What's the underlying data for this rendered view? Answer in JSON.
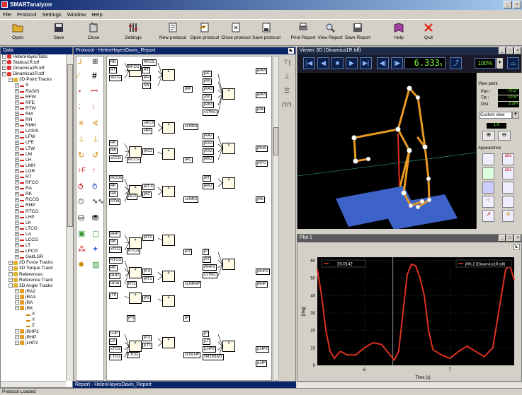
{
  "app_title": "SMARTanalyzer",
  "menu": [
    "File",
    "Protocol",
    "Settings",
    "Window",
    "Help"
  ],
  "toolbar": [
    {
      "label": "Open",
      "icon": "folder-open-icon"
    },
    {
      "label": "Save",
      "icon": "floppy-disk-icon"
    },
    {
      "label": "Close",
      "icon": "close-doc-icon"
    },
    {
      "label": "Settings",
      "icon": "settings-icon"
    },
    {
      "label": "New protocol",
      "icon": "new-protocol-icon"
    },
    {
      "label": "Open protocol",
      "icon": "open-protocol-icon"
    },
    {
      "label": "Close protocol",
      "icon": "close-protocol-icon"
    },
    {
      "label": "Save protocol",
      "icon": "save-protocol-icon"
    },
    {
      "label": "Print Report",
      "icon": "printer-icon"
    },
    {
      "label": "View Report",
      "icon": "view-report-icon"
    },
    {
      "label": "Save Report",
      "icon": "save-report-icon"
    },
    {
      "label": "Help",
      "icon": "help-book-icon"
    },
    {
      "label": "Quit",
      "icon": "quit-x-icon"
    }
  ],
  "data_panel": {
    "title": "Data",
    "tree": [
      {
        "label": "HelenHayesTabs",
        "level": 0,
        "kind": "file"
      },
      {
        "label": "Statica1R.tdf",
        "level": 0,
        "kind": "file"
      },
      {
        "label": "Dinamica2R.tdf",
        "level": 0,
        "kind": "file"
      },
      {
        "label": "Dinamica1R.tdf",
        "level": 0,
        "kind": "file"
      },
      {
        "label": "3D Point Tracks",
        "level": 1,
        "kind": "folder"
      },
      {
        "label": "S",
        "level": 2,
        "kind": "track"
      },
      {
        "label": "RASIS",
        "level": 2,
        "kind": "track"
      },
      {
        "label": "RFW",
        "level": 2,
        "kind": "track"
      },
      {
        "label": "RFE",
        "level": 2,
        "kind": "track"
      },
      {
        "label": "RTW",
        "level": 2,
        "kind": "track"
      },
      {
        "label": "RM",
        "level": 2,
        "kind": "track"
      },
      {
        "label": "RH",
        "level": 2,
        "kind": "track"
      },
      {
        "label": "RMH",
        "level": 2,
        "kind": "track"
      },
      {
        "label": "LASIS",
        "level": 2,
        "kind": "track"
      },
      {
        "label": "LFW",
        "level": 2,
        "kind": "track"
      },
      {
        "label": "LFE",
        "level": 2,
        "kind": "track"
      },
      {
        "label": "LTW",
        "level": 2,
        "kind": "track"
      },
      {
        "label": "LM",
        "level": 2,
        "kind": "track"
      },
      {
        "label": "LH",
        "level": 2,
        "kind": "track"
      },
      {
        "label": "LMH",
        "level": 2,
        "kind": "track"
      },
      {
        "label": "LGR",
        "level": 2,
        "kind": "track"
      },
      {
        "label": "RT",
        "level": 2,
        "kind": "track"
      },
      {
        "label": "RFCG",
        "level": 2,
        "kind": "track"
      },
      {
        "label": "RA",
        "level": 2,
        "kind": "track"
      },
      {
        "label": "RK",
        "level": 2,
        "kind": "track"
      },
      {
        "label": "RCCG",
        "level": 2,
        "kind": "track"
      },
      {
        "label": "RHP",
        "level": 2,
        "kind": "track"
      },
      {
        "label": "RTCG",
        "level": 2,
        "kind": "track"
      },
      {
        "label": "LHP",
        "level": 2,
        "kind": "track"
      },
      {
        "label": "LK",
        "level": 2,
        "kind": "track"
      },
      {
        "label": "LTCG",
        "level": 2,
        "kind": "track"
      },
      {
        "label": "LA",
        "level": 2,
        "kind": "track"
      },
      {
        "label": "LCCG",
        "level": 2,
        "kind": "track"
      },
      {
        "label": "LT",
        "level": 2,
        "kind": "track"
      },
      {
        "label": "LFCG",
        "level": 2,
        "kind": "track"
      },
      {
        "label": "GaitLGR",
        "level": 2,
        "kind": "track"
      },
      {
        "label": "3D Force Tracks",
        "level": 1,
        "kind": "folder"
      },
      {
        "label": "3D Torque Track",
        "level": 1,
        "kind": "folder"
      },
      {
        "label": "References",
        "level": 1,
        "kind": "folder"
      },
      {
        "label": "Reference Track",
        "level": 1,
        "kind": "folder"
      },
      {
        "label": "3D Angle Tracks",
        "level": 1,
        "kind": "folder"
      },
      {
        "label": "jRA2",
        "level": 2,
        "kind": "angle"
      },
      {
        "label": "jRA3",
        "level": 2,
        "kind": "angle"
      },
      {
        "label": "jRA",
        "level": 2,
        "kind": "angle"
      },
      {
        "label": "jRK",
        "level": 2,
        "kind": "angle"
      },
      {
        "label": "X",
        "level": 3,
        "kind": "axis"
      },
      {
        "label": "Y",
        "level": 3,
        "kind": "axis"
      },
      {
        "label": "Z",
        "level": 3,
        "kind": "axis"
      },
      {
        "label": "jRHP2",
        "level": 2,
        "kind": "angle"
      },
      {
        "label": "jRHP",
        "level": 2,
        "kind": "angle"
      },
      {
        "label": "jLHP2",
        "level": 2,
        "kind": "angle"
      }
    ]
  },
  "protocol_panel": {
    "title": "Protocol - HelenHayesDavis_Report",
    "col1_nodes": [
      [
        "RK",
        "RT",
        "sFCG"
      ],
      [
        "RFCG",
        "RT",
        "RH",
        "RA"
      ],
      [
        "sRCX",
        "sRF"
      ],
      [
        "jRC",
        "jRR",
        "jRA3",
        "a90",
        "jRA3",
        "v1TM1"
      ],
      [
        "RK",
        "RA",
        "sCCG"
      ],
      [
        "jRC2"
      ],
      [
        "jRA2",
        "jRX2",
        "jRX2",
        "jRK2"
      ],
      [
        "RCCG",
        "RK",
        "RA",
        "RTW"
      ],
      [
        "jRT.X",
        "jRC"
      ],
      [
        "jRT",
        "jRK2"
      ],
      [
        "RHP",
        "RK",
        "sTCG"
      ],
      [
        "jRT2"
      ],
      [
        "RTCG",
        "RK",
        "RHP",
        "RFW"
      ],
      [
        "jP.X",
        "jRT1"
      ],
      [
        "jP",
        "jRT",
        "jRHP2",
        "v1TM1"
      ],
      [
        "jTP"
      ],
      [
        "jP2"
      ],
      [
        "LHP",
        "LK",
        "sTCG",
        "LTCG"
      ],
      [
        "jP.X",
        "jLT1"
      ],
      [
        "jP",
        "jLT",
        "jLHP2",
        "vM1M1M1"
      ]
    ],
    "outputs": [
      "RFCG",
      "jRF",
      "jRA3",
      "jRA3",
      "jRA",
      "vLNRA",
      "RCCG",
      "jRC",
      "jRHS",
      "jRTO",
      "RC2",
      "vLNRK",
      "jRK",
      "RTCG",
      "jRT",
      "RT3",
      "vLNRHP",
      "jRHP2",
      "jRHP",
      "jP3",
      "jP",
      "LTCG",
      "vLNLHP",
      "jLHP2",
      "jLHP"
    ]
  },
  "report_panel": {
    "title": "Report - HelenHayesDavis_Report"
  },
  "viewer": {
    "title": "Viewer 3D (Dinamica1R.tdf)",
    "time_value": "6.333",
    "time_unit": "s",
    "zoom": "100%",
    "view_point_label": "View point",
    "pan_label": "Pan :",
    "pan_value": "-70.5°",
    "tilt_label": "Tilt :",
    "tilt_value": "10.5°",
    "dist_label": "Dist :",
    "dist_value": "3.2m",
    "view_select": "Custom view",
    "scale_value": "1.0",
    "appearance_label": "Appearence"
  },
  "plot": {
    "title": "Plot 1",
    "cursor_value": "20.0142",
    "legend": "jRK.Z [Dinamica1R.tdf]",
    "ylabel": "[deg]",
    "xlabel": "Time [s]",
    "colors": {
      "bg": "#000000",
      "line": "#e03020",
      "grid": "#4a4a4a"
    }
  },
  "chart_data": {
    "type": "line",
    "x_ticks": [
      "6",
      "7"
    ],
    "y_ticks": [
      "60",
      "50",
      "40",
      "30",
      "20",
      "10",
      "0"
    ],
    "ylim": [
      0,
      62
    ],
    "xlim": [
      5.45,
      7.75
    ],
    "series": [
      {
        "name": "jRK.Z [Dinamica1R.tdf]",
        "x": [
          5.45,
          5.5,
          5.55,
          5.6,
          5.65,
          5.7,
          5.72,
          5.8,
          5.9,
          6.0,
          6.1,
          6.2,
          6.3,
          6.35,
          6.4,
          6.45,
          6.5,
          6.55,
          6.6,
          6.65,
          6.7,
          6.75,
          6.8,
          6.9,
          7.0,
          7.1,
          7.2,
          7.3,
          7.4,
          7.5,
          7.6,
          7.65,
          7.7,
          7.75
        ],
        "y": [
          55,
          40,
          20,
          8,
          4,
          7,
          8,
          6,
          6,
          10,
          13,
          12,
          6,
          3,
          8,
          30,
          52,
          58,
          57,
          50,
          40,
          20,
          9,
          6,
          4,
          8,
          11,
          8,
          5,
          10,
          40,
          55,
          57,
          49
        ]
      }
    ],
    "cursor_x": 6.333
  },
  "status": "Protocol Loaded"
}
